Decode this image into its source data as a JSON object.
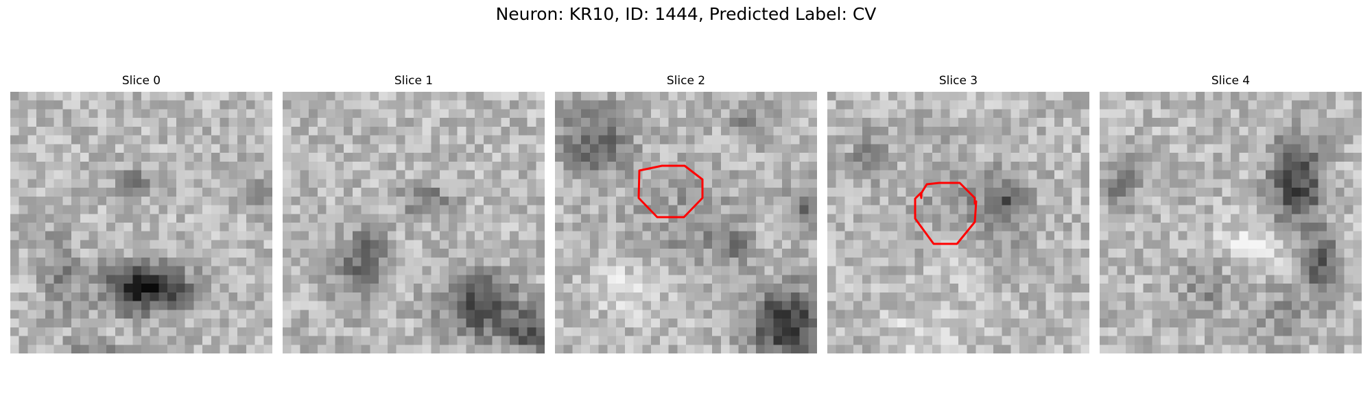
{
  "figure": {
    "title": "Neuron: KR10, ID: 1444, Predicted Label: CV"
  },
  "colors": {
    "contour": "#ff0000",
    "colormap": "gray"
  },
  "slices": [
    {
      "title": "Slice 0",
      "has_contour": false
    },
    {
      "title": "Slice 1",
      "has_contour": false
    },
    {
      "title": "Slice 2",
      "has_contour": true
    },
    {
      "title": "Slice 3",
      "has_contour": true
    },
    {
      "title": "Slice 4",
      "has_contour": false
    }
  ]
}
